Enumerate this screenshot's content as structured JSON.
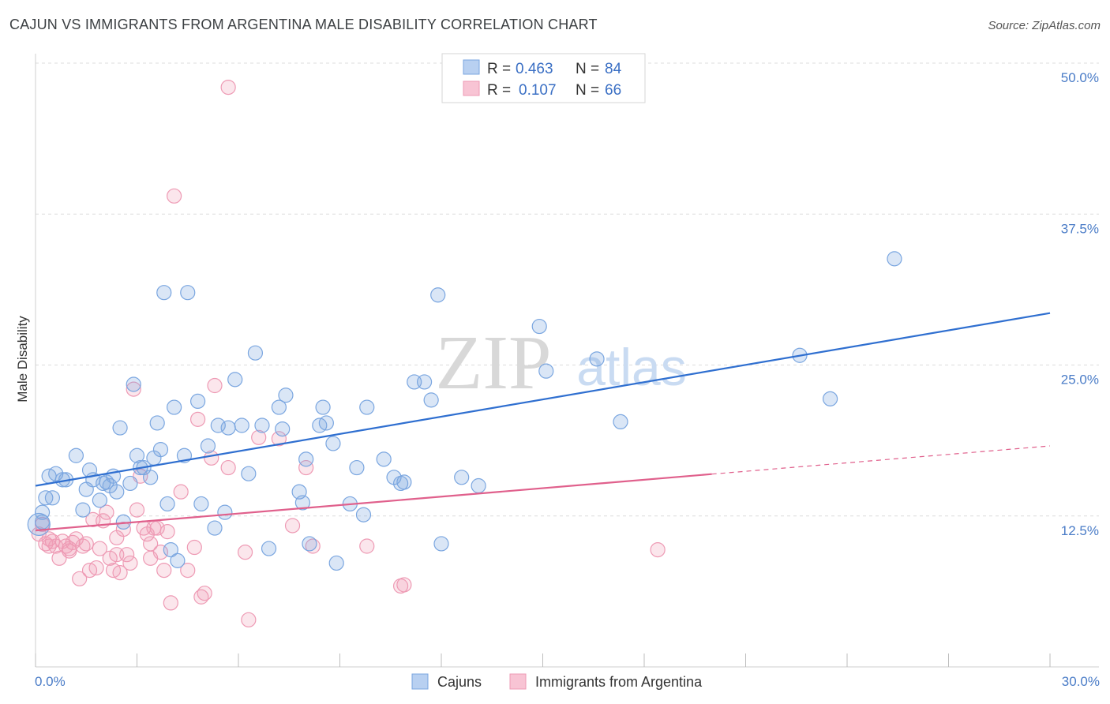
{
  "header": {
    "title": "CAJUN VS IMMIGRANTS FROM ARGENTINA MALE DISABILITY CORRELATION CHART",
    "source": "Source: ZipAtlas.com"
  },
  "watermark": {
    "zip": "ZIP",
    "atlas": "atlas"
  },
  "colors": {
    "blue": "#7aa6e0",
    "blue_fill": "rgba(122,166,224,0.28)",
    "blue_line": "#2f6fd0",
    "pink": "#ee9ab4",
    "pink_fill": "rgba(238,154,180,0.25)",
    "pink_line": "#e0608c",
    "grid": "#dcdcdc"
  },
  "legend": {
    "rows": [
      {
        "r_label": "R = ",
        "r_value": "0.463",
        "n_label": "N = ",
        "n_value": "84"
      },
      {
        "r_label": "R = ",
        "r_value": "0.107",
        "n_label": "N = ",
        "n_value": "66"
      }
    ]
  },
  "bottom_legend": [
    "Cajuns",
    "Immigrants from Argentina"
  ],
  "chart_data": {
    "type": "scatter",
    "title": "CAJUN VS IMMIGRANTS FROM ARGENTINA MALE DISABILITY CORRELATION CHART",
    "xlabel": "",
    "ylabel": "Male Disability",
    "xlim": [
      0,
      30
    ],
    "ylim": [
      0,
      50
    ],
    "x_tick_labels": [
      "0.0%",
      "30.0%"
    ],
    "y_tick_values": [
      12.5,
      25.0,
      37.5,
      50.0
    ],
    "y_tick_labels": [
      "12.5%",
      "25.0%",
      "37.5%",
      "50.0%"
    ],
    "grid": true,
    "legend_position": "top-center",
    "series": [
      {
        "name": "Cajuns",
        "r": 0.463,
        "n": 84,
        "trend": {
          "x": [
            0,
            30
          ],
          "y": [
            15.0,
            29.3
          ],
          "dashed_from": null
        },
        "points": [
          [
            0.2,
            12.8
          ],
          [
            0.2,
            12.0
          ],
          [
            0.3,
            14.0
          ],
          [
            0.4,
            15.8
          ],
          [
            0.5,
            14.0
          ],
          [
            0.6,
            16.0
          ],
          [
            0.8,
            15.5
          ],
          [
            0.9,
            15.5
          ],
          [
            1.2,
            17.5
          ],
          [
            1.4,
            13.0
          ],
          [
            1.5,
            14.7
          ],
          [
            1.6,
            16.3
          ],
          [
            1.7,
            15.5
          ],
          [
            1.9,
            13.8
          ],
          [
            2.0,
            15.2
          ],
          [
            2.1,
            15.3
          ],
          [
            2.2,
            15.0
          ],
          [
            2.3,
            15.8
          ],
          [
            2.4,
            14.5
          ],
          [
            2.5,
            19.8
          ],
          [
            2.6,
            12.0
          ],
          [
            2.8,
            15.2
          ],
          [
            2.9,
            23.4
          ],
          [
            3.0,
            17.5
          ],
          [
            3.1,
            16.5
          ],
          [
            3.2,
            16.5
          ],
          [
            3.4,
            15.7
          ],
          [
            3.5,
            17.3
          ],
          [
            3.6,
            20.2
          ],
          [
            3.7,
            18.0
          ],
          [
            3.8,
            31.0
          ],
          [
            3.9,
            13.5
          ],
          [
            4.0,
            9.7
          ],
          [
            4.1,
            21.5
          ],
          [
            4.2,
            8.8
          ],
          [
            4.4,
            17.5
          ],
          [
            4.5,
            31.0
          ],
          [
            4.8,
            22.0
          ],
          [
            4.9,
            13.5
          ],
          [
            5.1,
            18.3
          ],
          [
            5.3,
            11.5
          ],
          [
            5.4,
            20.0
          ],
          [
            5.6,
            12.8
          ],
          [
            5.7,
            19.8
          ],
          [
            5.9,
            23.8
          ],
          [
            6.1,
            20.0
          ],
          [
            6.3,
            16.0
          ],
          [
            6.5,
            26.0
          ],
          [
            6.7,
            20.0
          ],
          [
            6.9,
            9.8
          ],
          [
            7.2,
            21.5
          ],
          [
            7.3,
            19.7
          ],
          [
            7.4,
            22.5
          ],
          [
            7.8,
            14.5
          ],
          [
            7.9,
            13.6
          ],
          [
            8.0,
            17.2
          ],
          [
            8.1,
            10.2
          ],
          [
            8.4,
            20.0
          ],
          [
            8.5,
            21.5
          ],
          [
            8.6,
            20.2
          ],
          [
            8.8,
            18.5
          ],
          [
            8.9,
            8.6
          ],
          [
            9.3,
            13.5
          ],
          [
            9.5,
            16.5
          ],
          [
            9.7,
            12.6
          ],
          [
            9.8,
            21.5
          ],
          [
            10.3,
            17.2
          ],
          [
            10.6,
            15.7
          ],
          [
            10.8,
            15.2
          ],
          [
            10.9,
            15.3
          ],
          [
            11.2,
            23.6
          ],
          [
            11.5,
            23.6
          ],
          [
            11.7,
            22.1
          ],
          [
            11.9,
            30.8
          ],
          [
            12.0,
            10.2
          ],
          [
            12.6,
            15.7
          ],
          [
            13.1,
            15.0
          ],
          [
            14.9,
            28.2
          ],
          [
            15.1,
            24.5
          ],
          [
            16.6,
            25.5
          ],
          [
            17.3,
            20.3
          ],
          [
            22.6,
            25.8
          ],
          [
            23.5,
            22.2
          ],
          [
            25.4,
            33.8
          ]
        ]
      },
      {
        "name": "Immigrants from Argentina",
        "r": 0.107,
        "n": 66,
        "trend": {
          "x": [
            0,
            30
          ],
          "y": [
            11.3,
            18.3
          ],
          "solid_until_x": 20.0
        },
        "points": [
          [
            0.1,
            11.0
          ],
          [
            0.2,
            11.8
          ],
          [
            0.3,
            10.2
          ],
          [
            0.4,
            10.0
          ],
          [
            0.4,
            10.6
          ],
          [
            0.5,
            10.4
          ],
          [
            0.6,
            10.0
          ],
          [
            0.7,
            9.0
          ],
          [
            0.8,
            10.4
          ],
          [
            0.9,
            10.0
          ],
          [
            1.0,
            9.6
          ],
          [
            1.1,
            10.3
          ],
          [
            1.2,
            10.6
          ],
          [
            1.3,
            7.3
          ],
          [
            1.4,
            10.0
          ],
          [
            1.5,
            10.2
          ],
          [
            1.6,
            8.0
          ],
          [
            1.7,
            12.2
          ],
          [
            1.8,
            8.2
          ],
          [
            1.9,
            9.8
          ],
          [
            2.0,
            12.1
          ],
          [
            2.1,
            12.8
          ],
          [
            2.2,
            9.0
          ],
          [
            2.3,
            8.0
          ],
          [
            2.4,
            10.7
          ],
          [
            2.5,
            7.8
          ],
          [
            2.6,
            11.4
          ],
          [
            2.7,
            9.3
          ],
          [
            2.8,
            8.6
          ],
          [
            2.9,
            23.0
          ],
          [
            3.0,
            13.0
          ],
          [
            3.1,
            15.8
          ],
          [
            3.2,
            11.5
          ],
          [
            3.3,
            11.0
          ],
          [
            3.4,
            10.2
          ],
          [
            3.5,
            11.5
          ],
          [
            3.6,
            11.5
          ],
          [
            3.7,
            9.5
          ],
          [
            3.8,
            8.0
          ],
          [
            3.9,
            11.2
          ],
          [
            4.0,
            5.3
          ],
          [
            4.1,
            39.0
          ],
          [
            4.3,
            14.5
          ],
          [
            4.5,
            8.0
          ],
          [
            4.7,
            9.9
          ],
          [
            4.8,
            20.5
          ],
          [
            4.9,
            5.8
          ],
          [
            5.0,
            6.1
          ],
          [
            5.2,
            17.3
          ],
          [
            5.3,
            23.3
          ],
          [
            5.7,
            16.5
          ],
          [
            6.2,
            9.5
          ],
          [
            6.3,
            3.9
          ],
          [
            6.6,
            19.0
          ],
          [
            7.2,
            18.9
          ],
          [
            7.6,
            11.7
          ],
          [
            8.0,
            16.5
          ],
          [
            8.2,
            10.0
          ],
          [
            9.8,
            10.0
          ],
          [
            10.8,
            6.7
          ],
          [
            10.9,
            6.8
          ],
          [
            18.4,
            9.7
          ],
          [
            5.7,
            48.0
          ],
          [
            2.4,
            9.3
          ],
          [
            1.0,
            9.8
          ],
          [
            3.4,
            9.0
          ]
        ]
      }
    ]
  }
}
